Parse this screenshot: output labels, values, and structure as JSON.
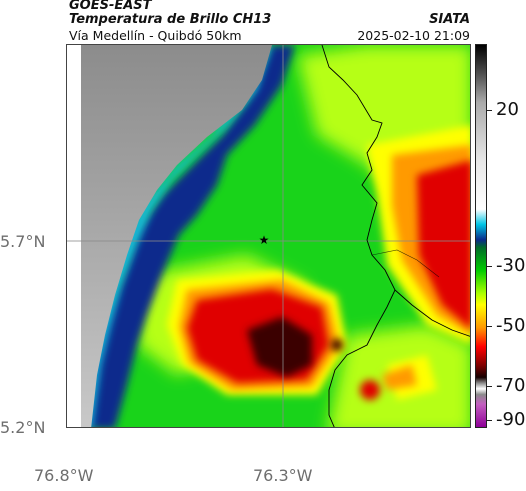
{
  "header": {
    "satellite": "GOES-EAST",
    "product": "Temperatura de Brillo CH13",
    "region": "Vía Medellín - Quibdó 50km",
    "organization": "SIATA",
    "timestamp": "2025-02-10 21:09"
  },
  "axes": {
    "lat_labels": [
      "5.7°N",
      "5.2°N"
    ],
    "lon_labels": [
      "76.8°W",
      "76.3°W"
    ]
  },
  "colorbar": {
    "labels": [
      "20",
      "-30",
      "-50",
      "-70",
      "-90"
    ]
  },
  "map": {
    "marker": "star",
    "colors": {
      "warm_gray": "#9a9a9a",
      "coast_cyan": "#12b8dc",
      "deep_blue": "#0a2c8c",
      "green": "#18d418",
      "yellow_green": "#b8ff10",
      "yellow": "#ffff00",
      "orange": "#ff9a00",
      "red": "#e00000",
      "dark_red": "#3a0000",
      "border_line": "#000000"
    }
  }
}
